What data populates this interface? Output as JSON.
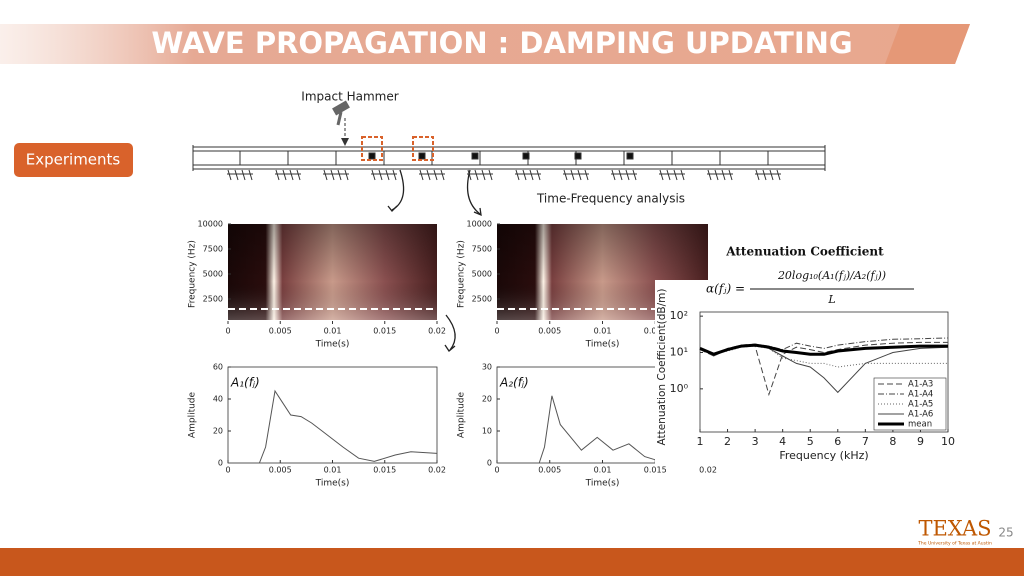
{
  "header": {
    "title": "WAVE PROPAGATION : DAMPING UPDATING"
  },
  "badge": "Experiments",
  "labels": {
    "impact": "Impact Hammer",
    "analysis": "Time-Frequency analysis"
  },
  "formula": {
    "title": "Attenuation Coefficient",
    "lhs": "α(fⱼ) =",
    "numerator": "20log₁₀(A₁(fⱼ)/A₂(fⱼ))",
    "denominator": "L"
  },
  "chart_data": [
    {
      "type": "heatmap",
      "xlabel": "Time(s)",
      "ylabel": "Frequency (Hz)",
      "xlim": [
        0,
        0.02
      ],
      "xticks": [
        0,
        0.005,
        0.01,
        0.015,
        0.02
      ],
      "ylim": [
        0,
        10000
      ],
      "yticks": [
        2500,
        5000,
        7500,
        10000
      ],
      "cutoff": 1500
    },
    {
      "type": "heatmap",
      "xlabel": "Time(s)",
      "ylabel": "Frequency (Hz)",
      "xlim": [
        0,
        0.02
      ],
      "xticks": [
        0,
        0.005,
        0.01,
        0.015
      ],
      "ylim": [
        0,
        10000
      ],
      "yticks": [
        2500,
        5000,
        7500,
        10000
      ],
      "cutoff": 1500
    },
    {
      "type": "line",
      "annotation": "A₁(fⱼ)",
      "xlabel": "Time(s)",
      "ylabel": "Amplitude",
      "xlim": [
        0,
        0.02
      ],
      "xticks": [
        0,
        0.005,
        0.01,
        0.015,
        0.02
      ],
      "ylim": [
        0,
        60
      ],
      "yticks": [
        0,
        20,
        40,
        60
      ],
      "x": [
        0,
        0.003,
        0.0036,
        0.0045,
        0.0052,
        0.006,
        0.007,
        0.008,
        0.009,
        0.01,
        0.011,
        0.0125,
        0.014,
        0.016,
        0.0175,
        0.02
      ],
      "series": [
        {
          "color": "#555555",
          "values": [
            0,
            0,
            10,
            45,
            38,
            30,
            29,
            25,
            20,
            15,
            10,
            3,
            1,
            5,
            7,
            6
          ]
        }
      ]
    },
    {
      "type": "line",
      "annotation": "A₂(fⱼ)",
      "xlabel": "Time(s)",
      "ylabel": "Amplitude",
      "xlim": [
        0,
        0.02
      ],
      "xticks": [
        0,
        0.005,
        0.01,
        0.015,
        0.02
      ],
      "ylim": [
        0,
        30
      ],
      "yticks": [
        0,
        10,
        20,
        30
      ],
      "x": [
        0,
        0.004,
        0.0045,
        0.0052,
        0.006,
        0.007,
        0.008,
        0.0095,
        0.011,
        0.0125,
        0.014,
        0.015
      ],
      "series": [
        {
          "color": "#555555",
          "values": [
            0,
            0,
            5,
            21,
            12,
            8,
            4,
            8,
            4,
            6,
            2,
            1
          ]
        }
      ]
    },
    {
      "type": "line",
      "yscale": "log",
      "xlabel": "Frequency (kHz)",
      "ylabel": "Attenuation Coefficient(dB/m)",
      "xlim": [
        1,
        10
      ],
      "xticks": [
        1,
        2,
        3,
        4,
        5,
        6,
        7,
        8,
        9,
        10
      ],
      "ylim": [
        0.065,
        130
      ],
      "yticks": [
        {
          "value": 1,
          "label": "10⁰"
        },
        {
          "value": 10,
          "label": "10¹"
        },
        {
          "value": 100,
          "label": "10²"
        }
      ],
      "legend": "lower right",
      "x": [
        1,
        1.5,
        2,
        2.5,
        3,
        3.5,
        4,
        4.5,
        5,
        5.5,
        6,
        7,
        8,
        9,
        10
      ],
      "series": [
        {
          "name": "A1-A3",
          "color": "#444444",
          "style": "dashed",
          "linewidth": 1,
          "values": [
            12,
            8,
            13,
            16,
            15,
            0.7,
            9,
            14,
            12,
            10,
            12,
            16,
            18,
            19,
            19
          ]
        },
        {
          "name": "A1-A4",
          "color": "#444444",
          "style": "dashdot",
          "linewidth": 1,
          "values": [
            13,
            9,
            12,
            16,
            17,
            15,
            12,
            18,
            15,
            13,
            16,
            20,
            23,
            24,
            25
          ]
        },
        {
          "name": "A1-A5",
          "color": "#666666",
          "style": "dotted",
          "linewidth": 1,
          "values": [
            12,
            9,
            11,
            14,
            15,
            13,
            7,
            6,
            5,
            5,
            4,
            5,
            5,
            5,
            5
          ]
        },
        {
          "name": "A1-A6",
          "color": "#444444",
          "style": "solid",
          "linewidth": 1,
          "values": [
            13,
            8,
            12,
            15,
            16,
            13,
            8,
            5,
            4,
            2,
            0.8,
            5,
            10,
            13,
            14
          ]
        },
        {
          "name": "mean",
          "color": "#000000",
          "style": "solid",
          "linewidth": 3,
          "values": [
            13,
            9,
            12,
            15,
            16,
            14,
            11,
            10,
            9,
            9,
            11,
            13,
            14,
            15,
            15
          ]
        }
      ]
    }
  ],
  "footer": {
    "logo": "TEXAS",
    "logo_sub": "The University of Texas at Austin",
    "page": "25"
  }
}
